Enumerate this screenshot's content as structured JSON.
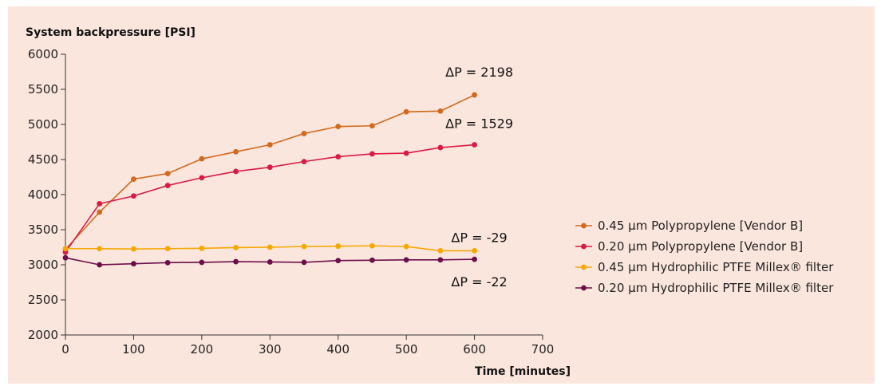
{
  "chart_data": {
    "type": "line",
    "ylabel": "System backpressure [PSI]",
    "xlabel": "Time [minutes]",
    "xlim": [
      0,
      700
    ],
    "ylim": [
      2000,
      6000
    ],
    "x_ticks": [
      0,
      100,
      200,
      300,
      400,
      500,
      600,
      700
    ],
    "y_ticks": [
      2000,
      2500,
      3000,
      3500,
      4000,
      4500,
      5000,
      5500,
      6000
    ],
    "grid": false,
    "legend_position": "right",
    "series": [
      {
        "name": "0.45 µm Polypropylene [Vendor B]",
        "color": "#d2691e",
        "x": [
          0,
          50,
          100,
          150,
          200,
          250,
          300,
          350,
          400,
          450,
          500,
          550,
          600
        ],
        "y": [
          3220,
          3750,
          4220,
          4300,
          4510,
          4610,
          4710,
          4870,
          4970,
          4980,
          5180,
          5190,
          5420
        ],
        "annotation": "ΔP = 2198"
      },
      {
        "name": "0.20 µm Polypropylene [Vendor B]",
        "color": "#d81b45",
        "x": [
          0,
          50,
          100,
          150,
          200,
          250,
          300,
          350,
          400,
          450,
          500,
          550,
          600
        ],
        "y": [
          3180,
          3870,
          3980,
          4130,
          4240,
          4330,
          4390,
          4470,
          4540,
          4580,
          4590,
          4670,
          4710
        ],
        "annotation": "ΔP = 1529"
      },
      {
        "name": "0.45 µm Hydrophilic PTFE Millex® filter",
        "color": "#f5a800",
        "x": [
          0,
          50,
          100,
          150,
          200,
          250,
          300,
          350,
          400,
          450,
          500,
          550,
          600
        ],
        "y": [
          3230,
          3230,
          3225,
          3230,
          3235,
          3245,
          3250,
          3260,
          3265,
          3270,
          3260,
          3200,
          3200
        ],
        "annotation": "ΔP = -29"
      },
      {
        "name": "0.20 µm Hydrophilic PTFE Millex® filter",
        "color": "#6b0f4a",
        "x": [
          0,
          50,
          100,
          150,
          200,
          250,
          300,
          350,
          400,
          450,
          500,
          550,
          600
        ],
        "y": [
          3100,
          3000,
          3015,
          3030,
          3035,
          3045,
          3040,
          3035,
          3060,
          3065,
          3070,
          3070,
          3078
        ],
        "annotation": "ΔP = -22"
      }
    ]
  }
}
